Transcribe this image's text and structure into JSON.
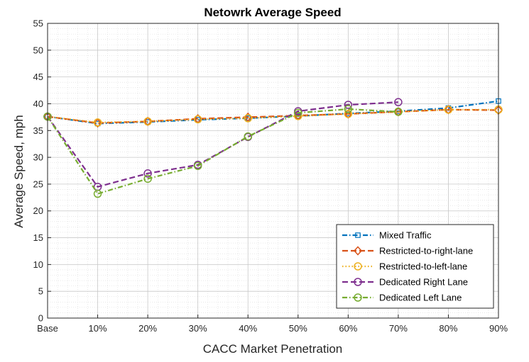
{
  "chart_data": {
    "type": "line",
    "title": "Netowrk Average Speed",
    "xlabel": "CACC Market Penetration",
    "ylabel": "Average Speed, mph",
    "categories": [
      "Base",
      "10%",
      "20%",
      "30%",
      "40%",
      "50%",
      "60%",
      "70%",
      "80%",
      "90%"
    ],
    "ylim": [
      0,
      55
    ],
    "yticks": [
      0,
      5,
      10,
      15,
      20,
      25,
      30,
      35,
      40,
      45,
      50,
      55
    ],
    "grid": true,
    "minor_grid": true,
    "legend_position": "bottom-right",
    "series": [
      {
        "name": "Mixed Traffic",
        "color": "#0072BD",
        "dash": "dash-dot",
        "marker": "square",
        "values": [
          37.6,
          36.3,
          36.6,
          37.0,
          37.3,
          37.7,
          38.2,
          38.6,
          39.2,
          40.5
        ]
      },
      {
        "name": "Restricted-to-right-lane",
        "color": "#D95319",
        "dash": "dashed",
        "marker": "diamond",
        "values": [
          37.6,
          36.4,
          36.7,
          37.2,
          37.5,
          37.8,
          38.1,
          38.5,
          38.9,
          38.8
        ]
      },
      {
        "name": "Restricted-to-left-lane",
        "color": "#EDB120",
        "dash": "dotted",
        "marker": "circle",
        "values": [
          37.6,
          36.5,
          36.7,
          37.1,
          37.3,
          37.7,
          38.1,
          38.5,
          38.9,
          38.9
        ]
      },
      {
        "name": "Dedicated Right Lane",
        "color": "#7E2F8E",
        "dash": "dashed",
        "marker": "circle",
        "values": [
          37.6,
          24.5,
          27.0,
          28.6,
          33.8,
          38.6,
          39.8,
          40.3,
          null,
          null
        ]
      },
      {
        "name": "Dedicated Left Lane",
        "color": "#77AC30",
        "dash": "dash-dot",
        "marker": "circle",
        "values": [
          37.6,
          23.2,
          26.0,
          28.4,
          33.9,
          38.3,
          39.0,
          38.5,
          null,
          null
        ]
      }
    ]
  }
}
